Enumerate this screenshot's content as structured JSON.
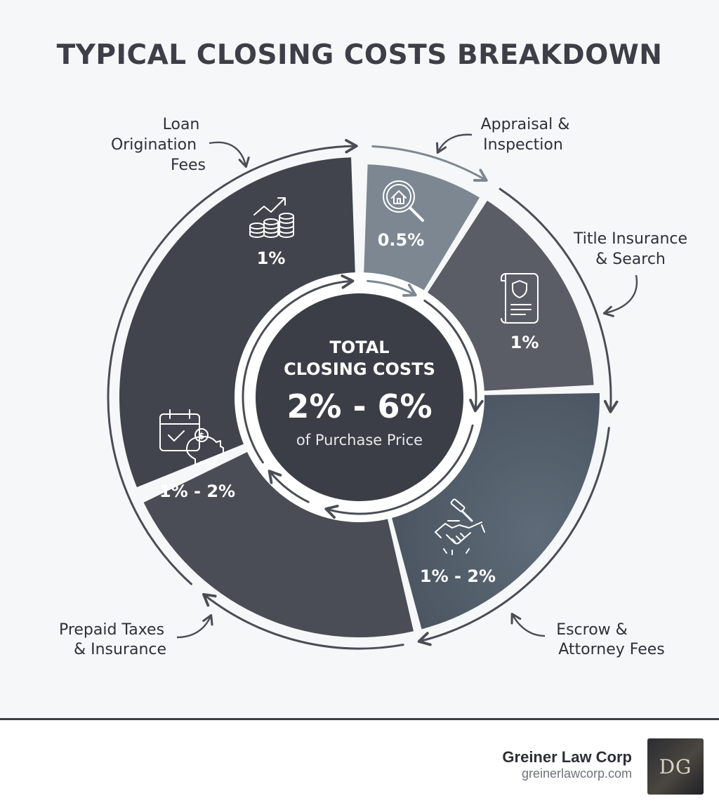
{
  "title": "TYPICAL CLOSING COSTS BREAKDOWN",
  "center": {
    "line1": "TOTAL",
    "line2": "CLOSING COSTS",
    "value": "2% - 6%",
    "caption": "of Purchase Price"
  },
  "segments": [
    {
      "key": "loan",
      "label_lines": [
        "Loan",
        "Origination",
        "Fees"
      ],
      "value": "1%",
      "icon": "coins-growth-icon",
      "color": "#41444c"
    },
    {
      "key": "appraisal",
      "label_lines": [
        "Appraisal &",
        "Inspection"
      ],
      "value": "0.5%",
      "icon": "house-magnifier-icon",
      "color": "#7c8791"
    },
    {
      "key": "title",
      "label_lines": [
        "Title Insurance",
        "& Search"
      ],
      "value": "1%",
      "icon": "shield-document-icon",
      "color": "#5a5d66"
    },
    {
      "key": "escrow",
      "label_lines": [
        "Escrow &",
        "Attorney Fees"
      ],
      "value": "1% - 2%",
      "icon": "handshake-gavel-icon",
      "color": "#56626e"
    },
    {
      "key": "prepaid",
      "label_lines": [
        "Prepaid Taxes",
        "& Insurance"
      ],
      "value": "1% - 2%",
      "icon": "calendar-piggybank-icon",
      "color": "#4a4d55"
    }
  ],
  "footer": {
    "company": "Greiner Law Corp",
    "url": "greinerlawcorp.com",
    "logo_text": "DG"
  }
}
